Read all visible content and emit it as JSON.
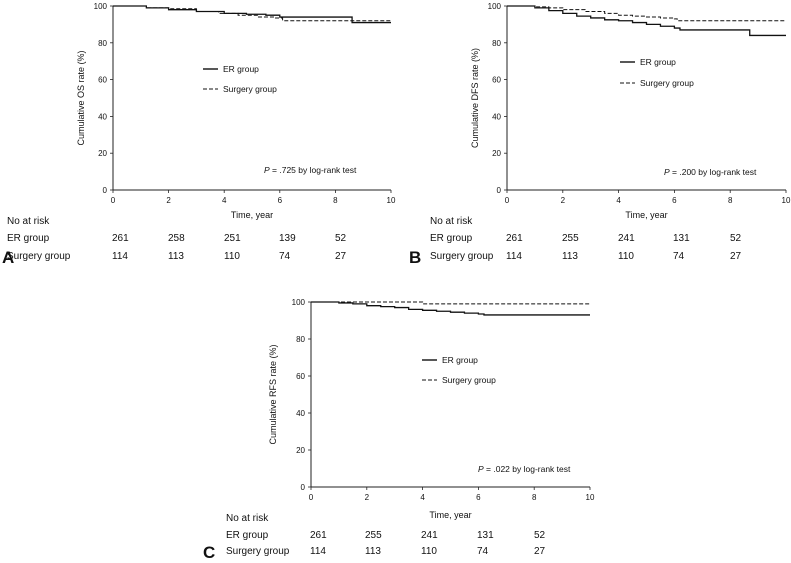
{
  "chart_data": [
    {
      "type": "line",
      "panel_label": "A",
      "ylabel": "Cumulative OS rate (%)",
      "xlabel": "Time, year",
      "xlim": [
        0,
        10
      ],
      "ylim": [
        0,
        100
      ],
      "xticks": [
        "0",
        "2",
        "4",
        "6",
        "8",
        "10"
      ],
      "yticks": [
        "0",
        "20",
        "40",
        "60",
        "80",
        "100"
      ],
      "grid": false,
      "legend": [
        "ER group",
        "Surgery group"
      ],
      "legend_position": "center-right",
      "annotation_p": "P",
      "annotation_rest": " = .725 by log-rank test",
      "series": [
        {
          "name": "ER group",
          "style": "solid",
          "x": [
            0,
            1.2,
            2.0,
            3.0,
            4.0,
            4.8,
            5.5,
            6.0,
            7.0,
            8.6,
            8.6,
            10.0
          ],
          "y": [
            100,
            99,
            98,
            97,
            96,
            95.5,
            95,
            94,
            94,
            94,
            91,
            91
          ]
        },
        {
          "name": "Surgery group",
          "style": "dashed",
          "x": [
            0,
            1.2,
            2.0,
            3.0,
            3.8,
            4.5,
            5.2,
            5.8,
            6.1,
            7.0,
            8.5,
            10.0
          ],
          "y": [
            100,
            99,
            98.5,
            97,
            96,
            95,
            94,
            93.5,
            92,
            92,
            92,
            92
          ]
        }
      ],
      "risk_table": {
        "title": "No at risk",
        "rows": [
          {
            "label": "ER group",
            "values": [
              "261",
              "258",
              "251",
              "139",
              "52"
            ]
          },
          {
            "label": "Surgery group",
            "values": [
              "114",
              "113",
              "110",
              "74",
              "27"
            ]
          }
        ]
      }
    },
    {
      "type": "line",
      "panel_label": "B",
      "ylabel": "Cumulative DFS rate (%)",
      "xlabel": "Time, year",
      "xlim": [
        0,
        10
      ],
      "ylim": [
        0,
        100
      ],
      "xticks": [
        "0",
        "2",
        "4",
        "6",
        "8",
        "10"
      ],
      "yticks": [
        "0",
        "20",
        "40",
        "60",
        "80",
        "100"
      ],
      "grid": false,
      "legend": [
        "ER group",
        "Surgery group"
      ],
      "legend_position": "top-right",
      "annotation_p": "P",
      "annotation_rest": " = .200 by log-rank test",
      "series": [
        {
          "name": "ER group",
          "style": "solid",
          "x": [
            0,
            1.0,
            1.5,
            2.0,
            2.5,
            3.0,
            3.5,
            4.0,
            4.5,
            5.0,
            5.5,
            6.0,
            6.2,
            7.0,
            8.7,
            8.7,
            10.0
          ],
          "y": [
            100,
            99,
            97.5,
            96,
            94.5,
            93.5,
            92.5,
            92,
            91,
            90,
            89,
            88,
            87,
            87,
            87,
            84,
            84
          ]
        },
        {
          "name": "Surgery group",
          "style": "dashed",
          "x": [
            0,
            1.0,
            1.5,
            2.0,
            2.8,
            3.5,
            4.0,
            4.5,
            5.0,
            5.5,
            6.0,
            6.1,
            7.0,
            10.0
          ],
          "y": [
            100,
            99.5,
            99,
            98,
            97,
            96,
            95,
            94.5,
            94,
            93.5,
            93,
            92,
            92,
            92
          ]
        }
      ],
      "risk_table": {
        "title": "No at risk",
        "rows": [
          {
            "label": "ER group",
            "values": [
              "261",
              "255",
              "241",
              "131",
              "52"
            ]
          },
          {
            "label": "Surgery group",
            "values": [
              "114",
              "113",
              "110",
              "74",
              "27"
            ]
          }
        ]
      }
    },
    {
      "type": "line",
      "panel_label": "C",
      "ylabel": "Cumulative RFS rate (%)",
      "xlabel": "Time, year",
      "xlim": [
        0,
        10
      ],
      "ylim": [
        0,
        100
      ],
      "xticks": [
        "0",
        "2",
        "4",
        "6",
        "8",
        "10"
      ],
      "yticks": [
        "0",
        "20",
        "40",
        "60",
        "80",
        "100"
      ],
      "grid": false,
      "legend": [
        "ER group",
        "Surgery group"
      ],
      "legend_position": "center",
      "annotation_p": "P",
      "annotation_rest": " = .022 by log-rank test",
      "series": [
        {
          "name": "ER group",
          "style": "solid",
          "x": [
            0,
            1.0,
            1.5,
            2.0,
            2.5,
            3.0,
            3.5,
            4.0,
            4.5,
            5.0,
            5.5,
            6.0,
            6.2,
            7.0,
            10.0
          ],
          "y": [
            100,
            99.5,
            99,
            98,
            97.5,
            97,
            96,
            95.5,
            95,
            94.5,
            94,
            93.5,
            93,
            93,
            93
          ]
        },
        {
          "name": "Surgery group",
          "style": "dashed",
          "x": [
            0,
            3.9,
            4.0,
            10.0
          ],
          "y": [
            100,
            100,
            99,
            99
          ]
        }
      ],
      "risk_table": {
        "title": "No at risk",
        "rows": [
          {
            "label": "ER group",
            "values": [
              "261",
              "255",
              "241",
              "131",
              "52"
            ]
          },
          {
            "label": "Surgery group",
            "values": [
              "114",
              "113",
              "110",
              "74",
              "27"
            ]
          }
        ]
      }
    }
  ]
}
